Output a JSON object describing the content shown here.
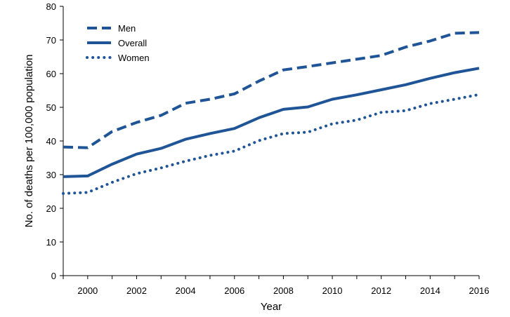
{
  "chart_data": {
    "type": "line",
    "title": "",
    "xlabel": "Year",
    "ylabel": "No. of deaths per 100,000 population",
    "x": [
      1999,
      2000,
      2001,
      2002,
      2003,
      2004,
      2005,
      2006,
      2007,
      2008,
      2009,
      2010,
      2011,
      2012,
      2013,
      2014,
      2015,
      2016
    ],
    "xticks": [
      2000,
      2002,
      2004,
      2006,
      2008,
      2010,
      2012,
      2014,
      2016
    ],
    "xticklabels": [
      "2000",
      "2002",
      "2004",
      "2006",
      "2008",
      "2010",
      "2012",
      "2014",
      "2016"
    ],
    "ylim": [
      0,
      80
    ],
    "yticks": [
      0,
      10,
      20,
      30,
      40,
      50,
      60,
      70,
      80
    ],
    "yticklabels": [
      "0",
      "10",
      "20",
      "30",
      "40",
      "50",
      "60",
      "70",
      "80"
    ],
    "grid": false,
    "legend_position": "top-left",
    "series": [
      {
        "name": "Men",
        "style": "dashed",
        "values": [
          38.2,
          38.0,
          42.8,
          45.5,
          47.6,
          51.2,
          52.4,
          54.0,
          57.8,
          61.1,
          62.1,
          63.2,
          64.3,
          65.4,
          67.9,
          69.7,
          72.0,
          72.2
        ]
      },
      {
        "name": "Overall",
        "style": "solid",
        "values": [
          29.4,
          29.6,
          33.1,
          36.1,
          37.8,
          40.5,
          42.2,
          43.7,
          46.9,
          49.4,
          50.1,
          52.4,
          53.7,
          55.2,
          56.7,
          58.6,
          60.3,
          61.6
        ]
      },
      {
        "name": "Women",
        "style": "dotted",
        "values": [
          24.4,
          24.7,
          27.7,
          30.3,
          32.0,
          34.0,
          35.7,
          37.0,
          40.1,
          42.2,
          42.6,
          45.1,
          46.2,
          48.5,
          49.0,
          51.1,
          52.4,
          53.8
        ]
      }
    ],
    "colors": {
      "line": "#1f5596",
      "axis": "#000000"
    }
  }
}
